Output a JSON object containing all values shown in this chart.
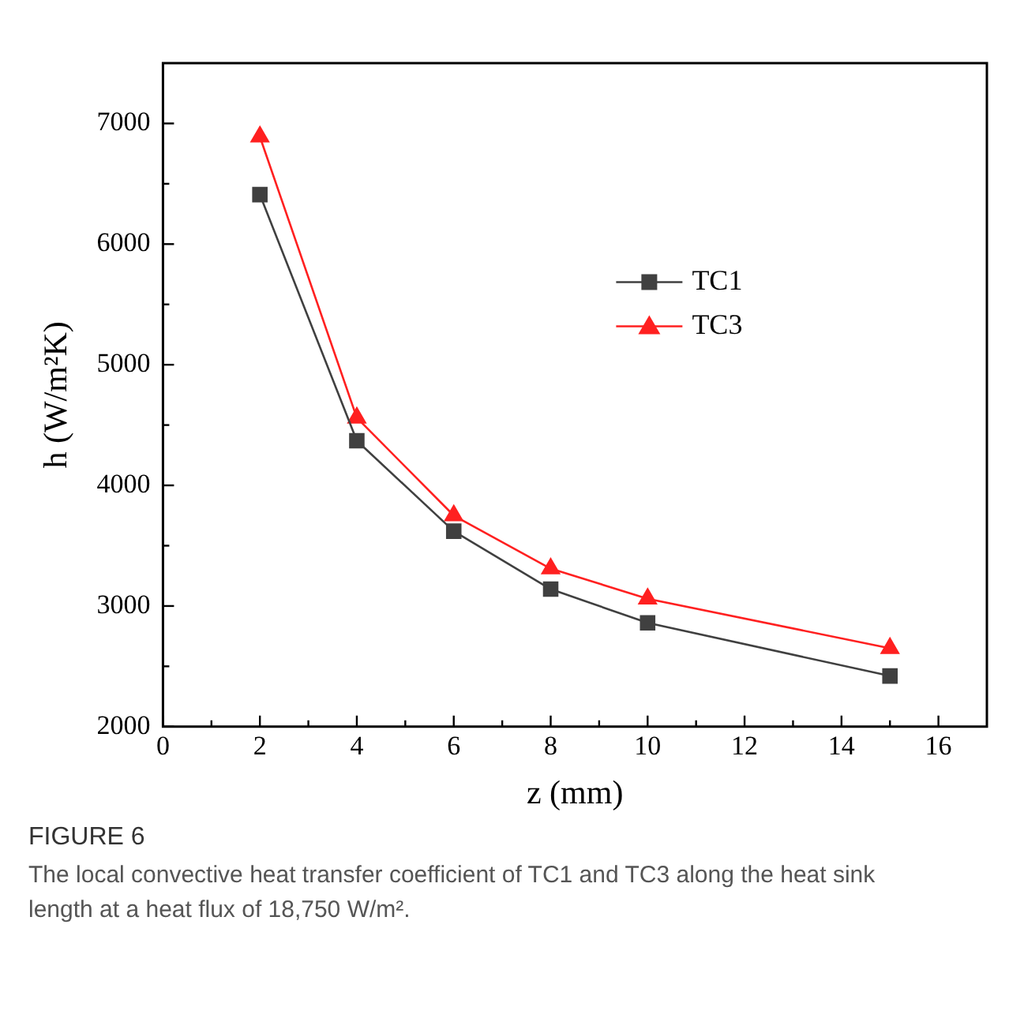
{
  "chart_data": {
    "type": "line",
    "xlabel": "z (mm)",
    "ylabel": "h (W/m²K)",
    "x": [
      2,
      4,
      6,
      8,
      10,
      15
    ],
    "series": [
      {
        "name": "TC1",
        "color": "#404040",
        "marker": "square",
        "values": [
          6410,
          4370,
          3620,
          3140,
          2860,
          2420
        ]
      },
      {
        "name": "TC3",
        "color": "#ff2020",
        "marker": "triangle",
        "values": [
          6890,
          4560,
          3750,
          3310,
          3060,
          2650
        ]
      }
    ],
    "xlim": [
      0,
      17
    ],
    "xticks": [
      0,
      {
        "value": 1,
        "label": null
      },
      2,
      {
        "value": 3,
        "label": null
      },
      4,
      {
        "value": 5,
        "label": null
      },
      6,
      {
        "value": 7,
        "label": null
      },
      8,
      {
        "value": 9,
        "label": null
      },
      10,
      {
        "value": 11,
        "label": null
      },
      12,
      {
        "value": 13,
        "label": null
      },
      14,
      {
        "value": 15,
        "label": null
      },
      16
    ],
    "ylim": [
      2000,
      7500
    ],
    "yticks": [
      2000,
      {
        "value": 2500,
        "label": null
      },
      3000,
      {
        "value": 3500,
        "label": null
      },
      4000,
      {
        "value": 4500,
        "label": null
      },
      5000,
      {
        "value": 5500,
        "label": null
      },
      6000,
      {
        "value": 6500,
        "label": null
      },
      7000
    ],
    "grid": false,
    "legend": "top right",
    "line_style": "solid",
    "annotations": [
      "FIGURE 6",
      "The local convective heat transfer coefficient of TC1 and TC3 along the heat sink length at a heat flux of 18,750 W/m²."
    ]
  }
}
